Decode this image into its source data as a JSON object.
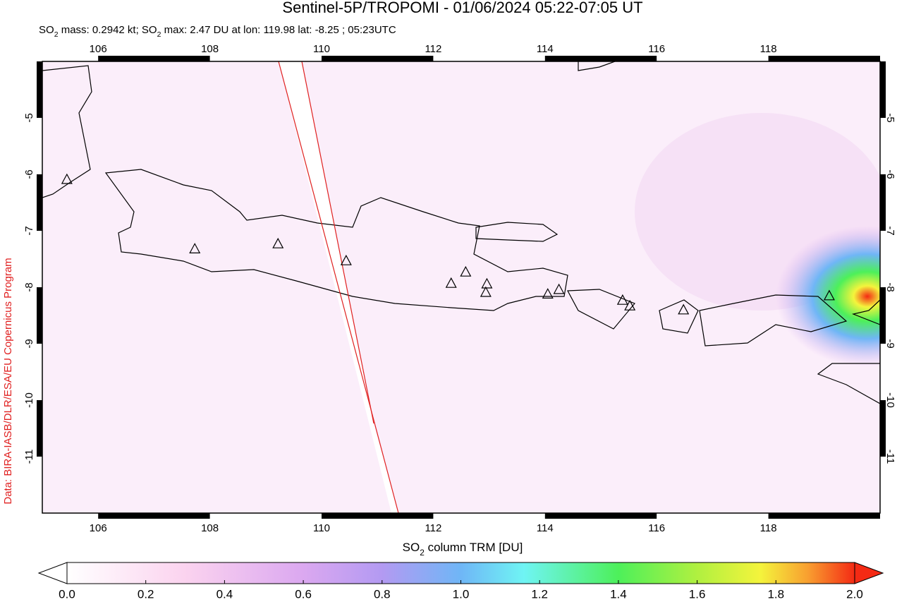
{
  "header": {
    "title": "Sentinel-5P/TROPOMI - 01/06/2024 05:22-07:05 UT",
    "subtitle_parts": [
      "SO",
      "2",
      " mass: 0.2942 kt; SO",
      "2",
      " max: 2.47 DU at lon: 119.98 lat: -8.25 ; 05:23UTC"
    ]
  },
  "credit": "Data: BIRA-IASB/DLR/ESA/EU Copernicus Program",
  "map": {
    "xlim": [
      105,
      120
    ],
    "ylim": [
      -12,
      -4
    ],
    "xticks": [
      106,
      108,
      110,
      112,
      114,
      116,
      118
    ],
    "yticks": [
      -5,
      -6,
      -7,
      -8,
      -9,
      -10,
      -11
    ],
    "grid": true,
    "volcanoes": {
      "lon": [
        105.44,
        107.73,
        109.22,
        110.44,
        112.32,
        112.58,
        112.96,
        112.94,
        114.05,
        114.25,
        115.39,
        115.52,
        116.48,
        119.09
      ],
      "lat": [
        -6.1,
        -7.33,
        -7.24,
        -7.54,
        -7.94,
        -7.74,
        -7.95,
        -8.1,
        -8.13,
        -8.05,
        -8.24,
        -8.34,
        -8.41,
        -8.16
      ]
    }
  },
  "colorbar": {
    "label_parts": [
      "SO",
      "2",
      " column TRM [DU]"
    ],
    "lim": [
      0,
      2
    ],
    "ticks": [
      {
        "value": 0,
        "label": "0.0"
      },
      {
        "value": 0.2,
        "label": "0.2"
      },
      {
        "value": 0.4,
        "label": "0.4"
      },
      {
        "value": 0.6,
        "label": "0.6"
      },
      {
        "value": 0.8,
        "label": "0.8"
      },
      {
        "value": 1,
        "label": "1.0"
      },
      {
        "value": 1.2,
        "label": "1.2"
      },
      {
        "value": 1.4,
        "label": "1.4"
      },
      {
        "value": 1.6,
        "label": "1.6"
      },
      {
        "value": 1.8,
        "label": "1.8"
      },
      {
        "value": 2,
        "label": "2.0"
      }
    ]
  }
}
